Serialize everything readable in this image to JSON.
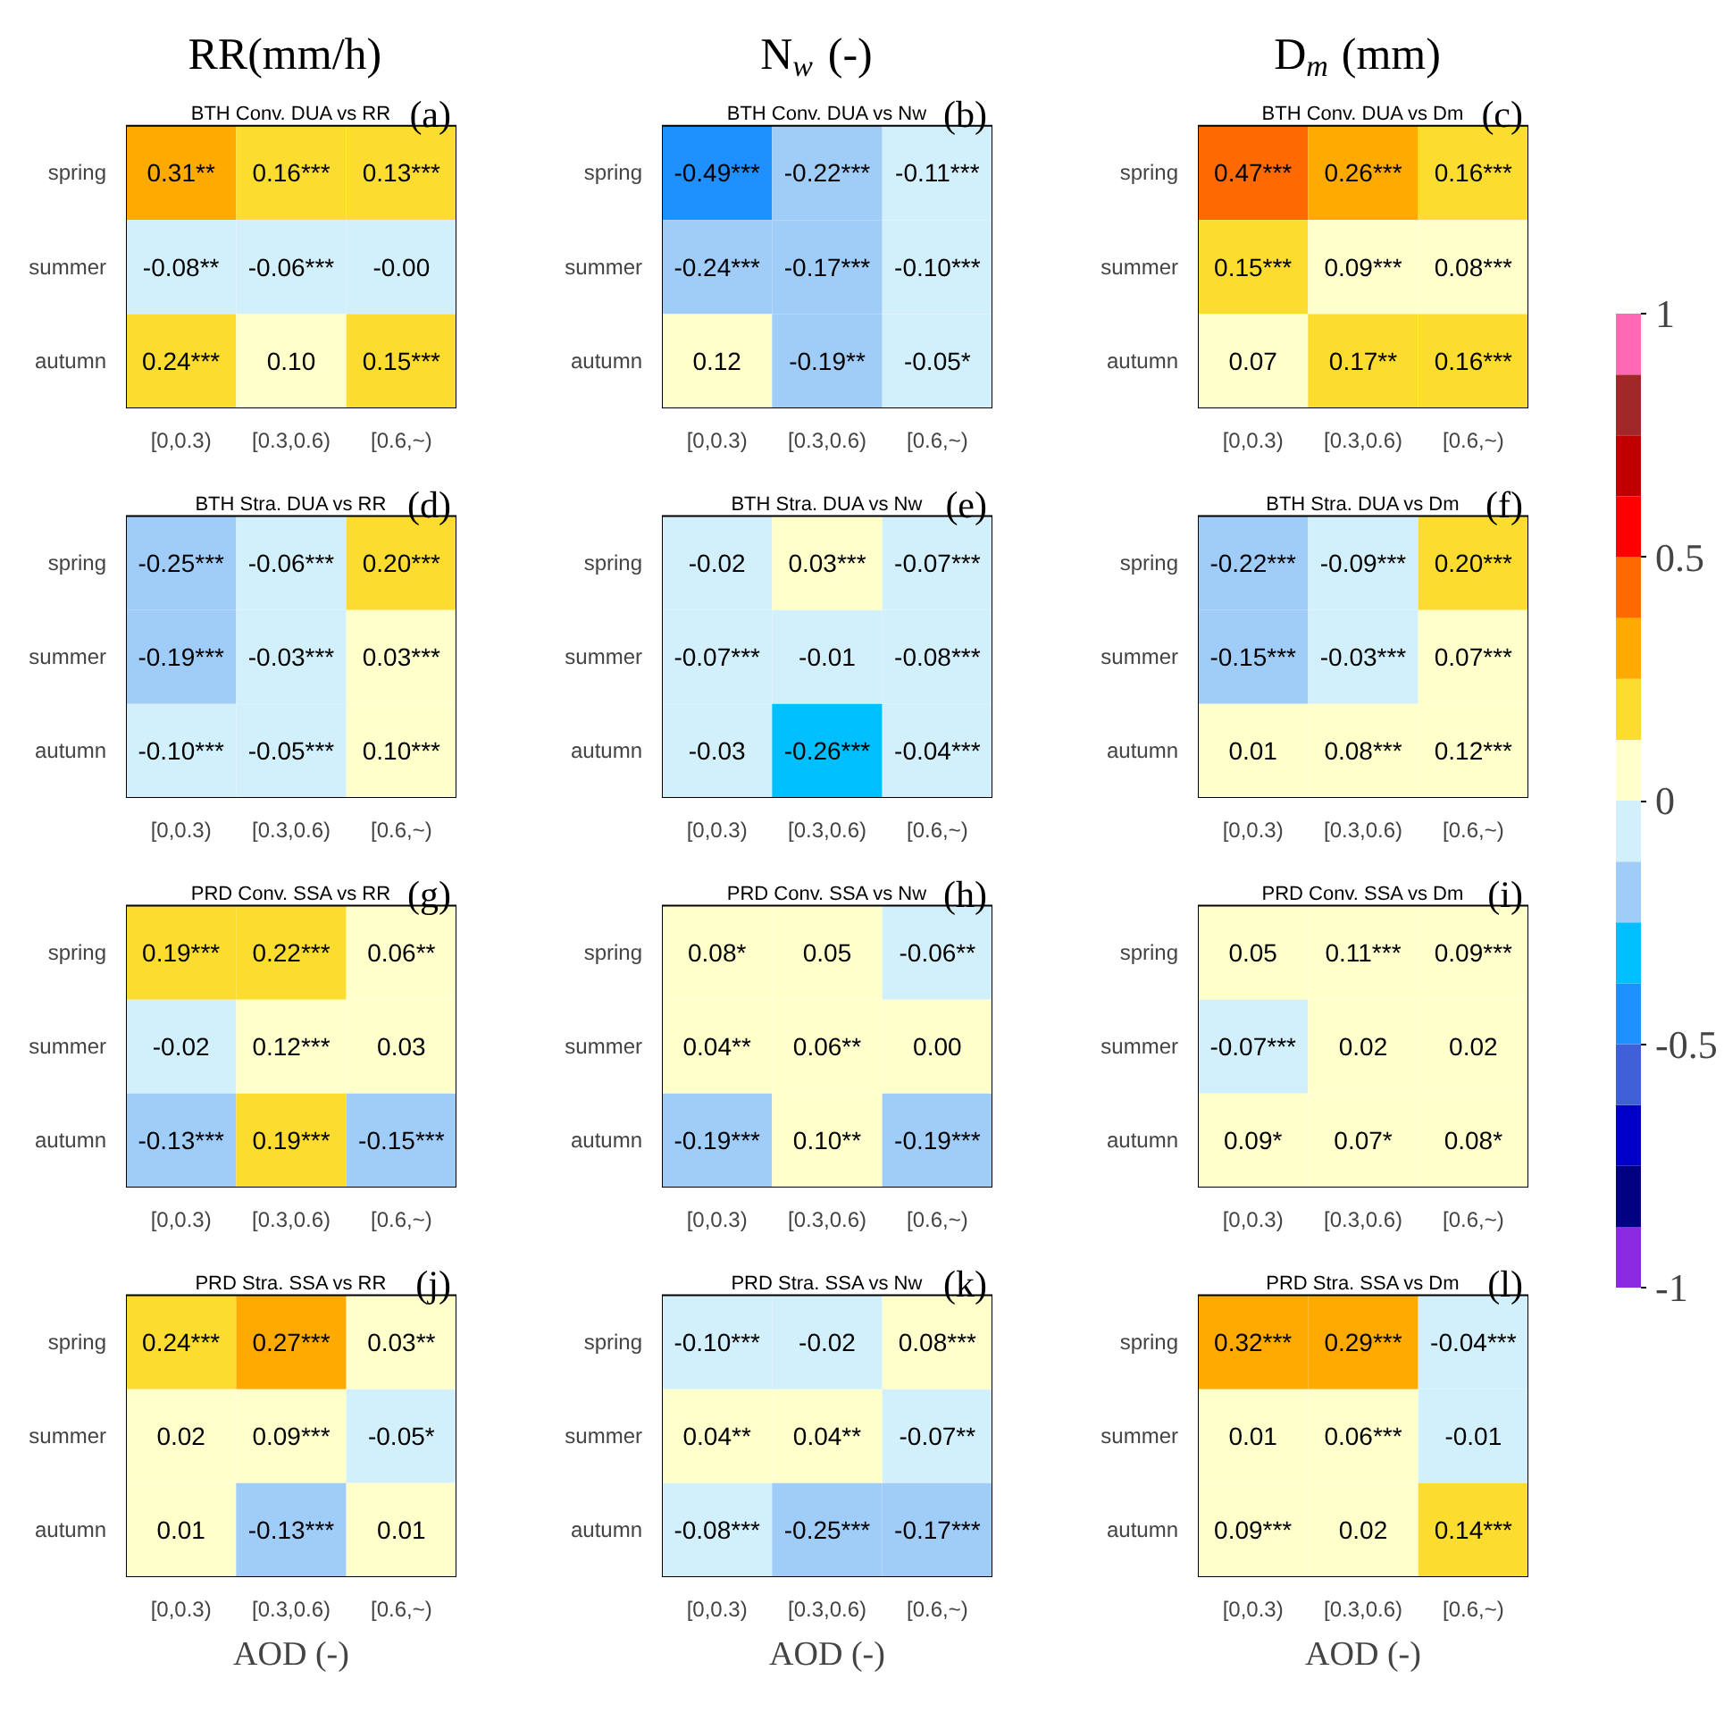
{
  "chart_data": [
    {
      "type": "heatmap",
      "title": "RR(mm/h)",
      "subtitle": "BTH Conv. DUA vs RR",
      "annotations": [
        "(a)"
      ],
      "categories": [
        "[0,0.3)",
        "[0.3,0.6)",
        "[0.6,~)"
      ],
      "y_categories": [
        "spring",
        "summer",
        "autumn"
      ],
      "cells": [
        [
          0.31,
          0.16,
          0.13
        ],
        [
          -0.08,
          -0.06,
          -0.0
        ],
        [
          0.24,
          0.1,
          0.15
        ]
      ],
      "cell_labels": [
        [
          "0.31**",
          "0.16***",
          "0.13***"
        ],
        [
          "-0.08**",
          "-0.06***",
          "-0.00"
        ],
        [
          "0.24***",
          "0.10",
          "0.15***"
        ]
      ]
    },
    {
      "type": "heatmap",
      "title": "N$_{w}$ (-)",
      "subtitle": "BTH Conv. DUA vs Nw",
      "annotations": [
        "(b)"
      ],
      "categories": [
        "[0,0.3)",
        "[0.3,0.6)",
        "[0.6,~)"
      ],
      "y_categories": [
        "spring",
        "summer",
        "autumn"
      ],
      "cells": [
        [
          -0.49,
          -0.22,
          -0.11
        ],
        [
          -0.24,
          -0.17,
          -0.1
        ],
        [
          0.12,
          -0.19,
          -0.05
        ]
      ],
      "cell_labels": [
        [
          "-0.49***",
          "-0.22***",
          "-0.11***"
        ],
        [
          "-0.24***",
          "-0.17***",
          "-0.10***"
        ],
        [
          "0.12",
          "-0.19**",
          "-0.05*"
        ]
      ]
    },
    {
      "type": "heatmap",
      "title": "D$_{m}$ (mm)",
      "subtitle": "BTH Conv. DUA vs Dm",
      "annotations": [
        "(c)"
      ],
      "categories": [
        "[0,0.3)",
        "[0.3,0.6)",
        "[0.6,~)"
      ],
      "y_categories": [
        "spring",
        "summer",
        "autumn"
      ],
      "cells": [
        [
          0.47,
          0.26,
          0.16
        ],
        [
          0.15,
          0.09,
          0.08
        ],
        [
          0.07,
          0.17,
          0.16
        ]
      ],
      "cell_labels": [
        [
          "0.47***",
          "0.26***",
          "0.16***"
        ],
        [
          "0.15***",
          "0.09***",
          "0.08***"
        ],
        [
          "0.07",
          "0.17**",
          "0.16***"
        ]
      ],
      "clim": [
        -1,
        1
      ],
      "cticks": [
        -1,
        -0.5,
        0,
        0.5,
        1
      ]
    },
    {
      "type": "heatmap",
      "title": "BTH Stra. DUA vs RR",
      "annotations": [
        "(d)"
      ],
      "categories": [
        "[0,0.3)",
        "[0.3,0.6)",
        "[0.6,~)"
      ],
      "y_categories": [
        "spring",
        "summer",
        "autumn"
      ],
      "cells": [
        [
          -0.25,
          -0.06,
          0.2
        ],
        [
          -0.19,
          -0.03,
          0.03
        ],
        [
          -0.1,
          -0.05,
          0.1
        ]
      ],
      "cell_labels": [
        [
          "-0.25***",
          "-0.06***",
          "0.20***"
        ],
        [
          "-0.19***",
          "-0.03***",
          "0.03***"
        ],
        [
          "-0.10***",
          "-0.05***",
          "0.10***"
        ]
      ]
    },
    {
      "type": "heatmap",
      "title": "BTH Stra. DUA vs Nw",
      "annotations": [
        "(e)"
      ],
      "categories": [
        "[0,0.3)",
        "[0.3,0.6)",
        "[0.6,~)"
      ],
      "y_categories": [
        "spring",
        "summer",
        "autumn"
      ],
      "cells": [
        [
          -0.02,
          0.03,
          -0.07
        ],
        [
          -0.07,
          -0.01,
          -0.08
        ],
        [
          -0.03,
          -0.26,
          -0.04
        ]
      ],
      "cell_labels": [
        [
          "-0.02",
          "0.03***",
          "-0.07***"
        ],
        [
          "-0.07***",
          "-0.01",
          "-0.08***"
        ],
        [
          "-0.03",
          "-0.26***",
          "-0.04***"
        ]
      ]
    },
    {
      "type": "heatmap",
      "title": "BTH Stra. DUA vs Dm",
      "annotations": [
        "(f)"
      ],
      "categories": [
        "[0,0.3)",
        "[0.3,0.6)",
        "[0.6,~)"
      ],
      "y_categories": [
        "spring",
        "summer",
        "autumn"
      ],
      "cells": [
        [
          -0.22,
          -0.09,
          0.2
        ],
        [
          -0.15,
          -0.03,
          0.07
        ],
        [
          0.01,
          0.08,
          0.12
        ]
      ],
      "cell_labels": [
        [
          "-0.22***",
          "-0.09***",
          "0.20***"
        ],
        [
          "-0.15***",
          "-0.03***",
          "0.07***"
        ],
        [
          "0.01",
          "0.08***",
          "0.12***"
        ]
      ]
    },
    {
      "type": "heatmap",
      "title": "PRD Conv. SSA vs RR",
      "annotations": [
        "(g)"
      ],
      "categories": [
        "[0,0.3)",
        "[0.3,0.6)",
        "[0.6,~)"
      ],
      "y_categories": [
        "spring",
        "summer",
        "autumn"
      ],
      "cells": [
        [
          0.19,
          0.22,
          0.06
        ],
        [
          -0.02,
          0.12,
          0.03
        ],
        [
          -0.13,
          0.19,
          -0.15
        ]
      ],
      "cell_labels": [
        [
          "0.19***",
          "0.22***",
          "0.06**"
        ],
        [
          "-0.02",
          "0.12***",
          "0.03"
        ],
        [
          "-0.13***",
          "0.19***",
          "-0.15***"
        ]
      ]
    },
    {
      "type": "heatmap",
      "title": "PRD Conv. SSA vs Nw",
      "annotations": [
        "(h)"
      ],
      "categories": [
        "[0,0.3)",
        "[0.3,0.6)",
        "[0.6,~)"
      ],
      "y_categories": [
        "spring",
        "summer",
        "autumn"
      ],
      "cells": [
        [
          0.08,
          0.05,
          -0.06
        ],
        [
          0.04,
          0.06,
          0.0
        ],
        [
          -0.19,
          0.1,
          -0.19
        ]
      ],
      "cell_labels": [
        [
          "0.08*",
          "0.05",
          "-0.06**"
        ],
        [
          "0.04**",
          "0.06**",
          "0.00"
        ],
        [
          "-0.19***",
          "0.10**",
          "-0.19***"
        ]
      ]
    },
    {
      "type": "heatmap",
      "title": "PRD Conv. SSA vs Dm",
      "annotations": [
        "(i)"
      ],
      "categories": [
        "[0,0.3)",
        "[0.3,0.6)",
        "[0.6,~)"
      ],
      "y_categories": [
        "spring",
        "summer",
        "autumn"
      ],
      "cells": [
        [
          0.05,
          0.11,
          0.09
        ],
        [
          -0.07,
          0.02,
          0.02
        ],
        [
          0.09,
          0.07,
          0.08
        ]
      ],
      "cell_labels": [
        [
          "0.05",
          "0.11***",
          "0.09***"
        ],
        [
          "-0.07***",
          "0.02",
          "0.02"
        ],
        [
          "0.09*",
          "0.07*",
          "0.08*"
        ]
      ]
    },
    {
      "type": "heatmap",
      "title": "PRD Stra. SSA vs RR",
      "xlabel": "AOD (-)",
      "annotations": [
        "(j)"
      ],
      "categories": [
        "[0,0.3)",
        "[0.3,0.6)",
        "[0.6,~)"
      ],
      "y_categories": [
        "spring",
        "summer",
        "autumn"
      ],
      "cells": [
        [
          0.24,
          0.27,
          0.03
        ],
        [
          0.02,
          0.09,
          -0.05
        ],
        [
          0.01,
          -0.13,
          0.01
        ]
      ],
      "cell_labels": [
        [
          "0.24***",
          "0.27***",
          "0.03**"
        ],
        [
          "0.02",
          "0.09***",
          "-0.05*"
        ],
        [
          "0.01",
          "-0.13***",
          "0.01"
        ]
      ]
    },
    {
      "type": "heatmap",
      "title": "PRD Stra. SSA vs Nw",
      "xlabel": "AOD (-)",
      "annotations": [
        "(k)"
      ],
      "categories": [
        "[0,0.3)",
        "[0.3,0.6)",
        "[0.6,~)"
      ],
      "y_categories": [
        "spring",
        "summer",
        "autumn"
      ],
      "cells": [
        [
          -0.1,
          -0.02,
          0.08
        ],
        [
          0.04,
          0.04,
          -0.07
        ],
        [
          -0.08,
          -0.25,
          -0.17
        ]
      ],
      "cell_labels": [
        [
          "-0.10***",
          "-0.02",
          "0.08***"
        ],
        [
          "0.04**",
          "0.04**",
          "-0.07**"
        ],
        [
          "-0.08***",
          "-0.25***",
          "-0.17***"
        ]
      ]
    },
    {
      "type": "heatmap",
      "title": "PRD Stra. SSA vs Dm",
      "xlabel": "AOD (-)",
      "annotations": [
        "(l)"
      ],
      "categories": [
        "[0,0.3)",
        "[0.3,0.6)",
        "[0.6,~)"
      ],
      "y_categories": [
        "spring",
        "summer",
        "autumn"
      ],
      "cells": [
        [
          0.32,
          0.29,
          -0.04
        ],
        [
          0.01,
          0.06,
          -0.01
        ],
        [
          0.09,
          0.02,
          0.14
        ]
      ],
      "cell_labels": [
        [
          "0.32***",
          "0.29***",
          "-0.04***"
        ],
        [
          "0.01",
          "0.06***",
          "-0.01"
        ],
        [
          "0.09***",
          "0.02",
          "0.14***"
        ]
      ]
    }
  ]
}
